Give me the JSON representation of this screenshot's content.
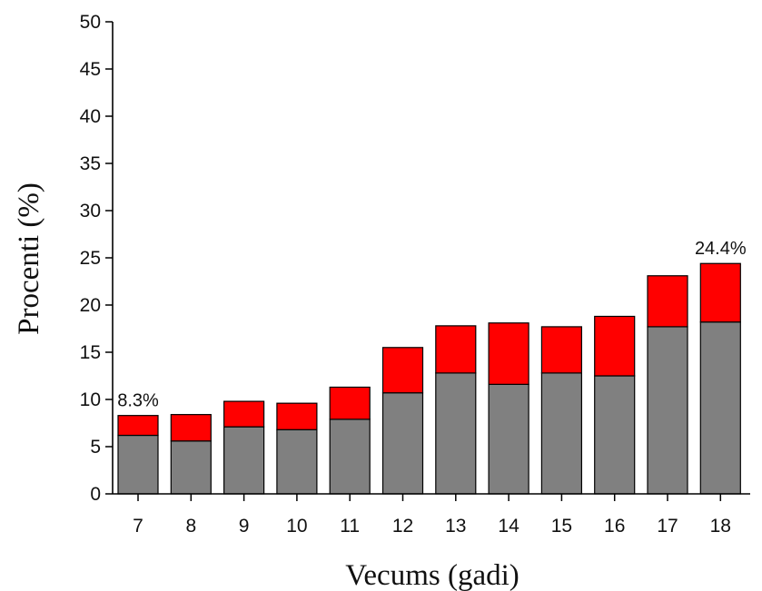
{
  "chart_data": {
    "type": "bar",
    "stacked": true,
    "xlabel": "Vecums (gadi)",
    "ylabel": "Procenti (%)",
    "ylim": [
      0,
      50
    ],
    "yticks": [
      0,
      5,
      10,
      15,
      20,
      25,
      30,
      35,
      40,
      45,
      50
    ],
    "categories": [
      "7",
      "8",
      "9",
      "10",
      "11",
      "12",
      "13",
      "14",
      "15",
      "16",
      "17",
      "18"
    ],
    "series": [
      {
        "color": "#808080",
        "values": [
          6.2,
          5.6,
          7.1,
          6.8,
          7.9,
          10.7,
          12.8,
          11.6,
          12.8,
          12.5,
          17.7,
          18.2
        ]
      },
      {
        "color": "#ff0000",
        "values": [
          2.1,
          2.8,
          2.7,
          2.8,
          3.4,
          4.8,
          5.0,
          6.5,
          4.9,
          6.3,
          5.4,
          6.2
        ]
      }
    ],
    "annotations": [
      {
        "category": "7",
        "text": "8.3%"
      },
      {
        "category": "18",
        "text": "24.4%"
      }
    ],
    "grid": false,
    "legend": "none"
  }
}
